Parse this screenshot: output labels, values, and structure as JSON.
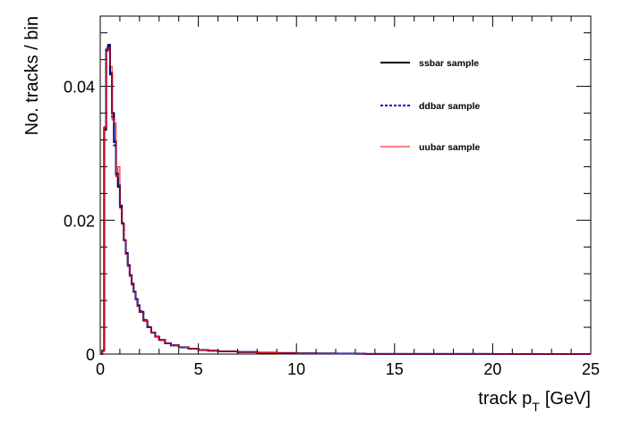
{
  "chart_data": {
    "type": "line",
    "title": "",
    "xlabel": "track p",
    "xlabel_sub": "T",
    "xlabel_unit": "[GeV]",
    "ylabel": "No. tracks / bin",
    "xlim": [
      0,
      25
    ],
    "ylim": [
      0,
      0.0505
    ],
    "grid": false,
    "legend_position": "top-right",
    "x_ticks": [
      0,
      5,
      10,
      15,
      20,
      25
    ],
    "x_tick_labels": [
      "0",
      "5",
      "10",
      "15",
      "20",
      "25"
    ],
    "y_ticks": [
      0,
      0.02,
      0.04
    ],
    "y_tick_labels": [
      "0",
      "0.02",
      "0.04"
    ],
    "x": [
      0.0,
      0.1,
      0.2,
      0.3,
      0.4,
      0.5,
      0.6,
      0.7,
      0.8,
      0.9,
      1.0,
      1.1,
      1.2,
      1.3,
      1.4,
      1.5,
      1.6,
      1.7,
      1.8,
      1.9,
      2.0,
      2.2,
      2.4,
      2.6,
      2.8,
      3.0,
      3.3,
      3.6,
      4.0,
      4.5,
      5.0,
      5.5,
      6.0,
      7.0,
      8.0,
      9.0,
      10.0,
      11.0,
      12.0,
      13.0,
      13.5,
      15.0,
      20.0,
      25.0
    ],
    "series": [
      {
        "name": "ssbar sample",
        "color": "#000000",
        "dash": "solid",
        "width": 2,
        "values": [
          0,
          0.0005,
          0.0335,
          0.0455,
          0.0462,
          0.0418,
          0.036,
          0.0318,
          0.0268,
          0.025,
          0.022,
          0.0195,
          0.017,
          0.015,
          0.0132,
          0.0117,
          0.0104,
          0.0093,
          0.0082,
          0.0072,
          0.0063,
          0.005,
          0.004,
          0.0032,
          0.0026,
          0.0021,
          0.0016,
          0.0013,
          0.001,
          0.0008,
          0.0006,
          0.0005,
          0.0004,
          0.0003,
          0.0002,
          0.00015,
          0.0001,
          8e-05,
          6e-05,
          5e-05,
          2e-05,
          1e-05,
          0,
          0
        ]
      },
      {
        "name": "ddbar sample",
        "color": "#0000cc",
        "dash": "dotted",
        "width": 2,
        "values": [
          0,
          0.0005,
          0.0338,
          0.0458,
          0.046,
          0.042,
          0.0355,
          0.0312,
          0.027,
          0.0252,
          0.0222,
          0.0196,
          0.0171,
          0.0151,
          0.0133,
          0.0118,
          0.0105,
          0.0093,
          0.0082,
          0.0073,
          0.0064,
          0.0051,
          0.0041,
          0.0032,
          0.0026,
          0.0021,
          0.0016,
          0.0013,
          0.001,
          0.0008,
          0.0006,
          0.0005,
          0.0004,
          0.0003,
          0.0002,
          0.00015,
          0.0001,
          8e-05,
          6e-05,
          5e-05,
          2e-05,
          1e-05,
          0,
          0
        ]
      },
      {
        "name": "uubar sample",
        "color": "#ff0000",
        "dash": "solid",
        "width": 1,
        "values": [
          0,
          0.0005,
          0.034,
          0.0452,
          0.0458,
          0.043,
          0.035,
          0.0345,
          0.0265,
          0.028,
          0.0218,
          0.0194,
          0.0169,
          0.0149,
          0.0131,
          0.0116,
          0.0103,
          0.0092,
          0.0081,
          0.0072,
          0.0063,
          0.005,
          0.004,
          0.0032,
          0.0026,
          0.0021,
          0.0016,
          0.0013,
          0.001,
          0.0008,
          0.0006,
          0.0005,
          0.0004,
          0.0003,
          0.0002,
          0.00015,
          0.0001,
          8e-05,
          6e-05,
          5e-05,
          2e-05,
          1e-05,
          0,
          0
        ]
      }
    ]
  }
}
